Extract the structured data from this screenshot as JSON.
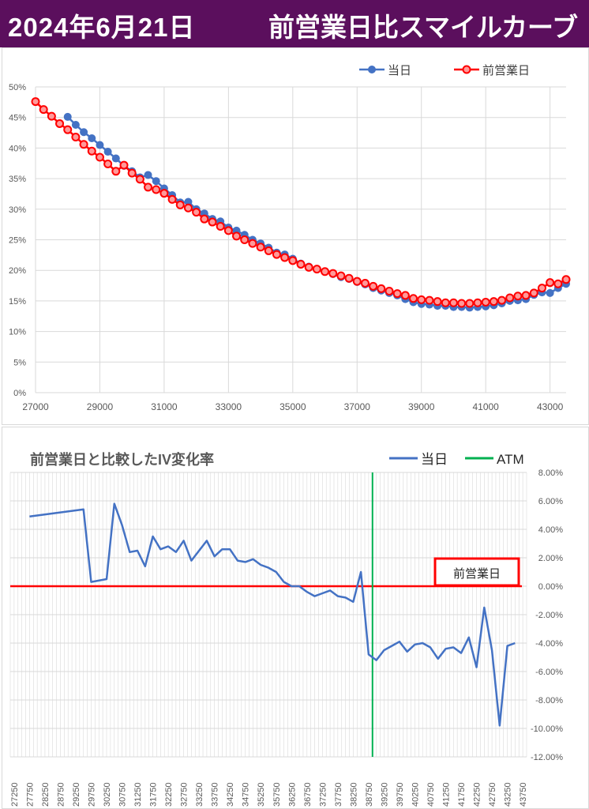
{
  "header": {
    "date": "2024年6月21日",
    "title": "前営業日比スマイルカーブ"
  },
  "colors": {
    "header_bg": "#5b0f5d",
    "today": "#4472c4",
    "prev": "#ff0000",
    "atm": "#00b050",
    "grid": "#d9d9d9"
  },
  "chart_data": [
    {
      "type": "line",
      "title": "",
      "legend": [
        "当日",
        "前営業日"
      ],
      "legend_position": "top-right",
      "xlim": [
        27000,
        43500
      ],
      "ylim": [
        0,
        0.5
      ],
      "x_ticks": [
        "27000",
        "29000",
        "31000",
        "33000",
        "35000",
        "37000",
        "39000",
        "41000",
        "43000"
      ],
      "y_ticks": [
        "0%",
        "5%",
        "10%",
        "15%",
        "20%",
        "25%",
        "30%",
        "35%",
        "40%",
        "45%",
        "50%"
      ],
      "grid": true,
      "series": [
        {
          "name": "当日",
          "color": "#4472c4",
          "points": [
            [
              28000,
              45.1
            ],
            [
              28250,
              43.8
            ],
            [
              28500,
              42.6
            ],
            [
              28750,
              41.6
            ],
            [
              29000,
              40.5
            ],
            [
              29250,
              39.4
            ],
            [
              29500,
              38.3
            ],
            [
              29750,
              37.1
            ],
            [
              30000,
              36.2
            ],
            [
              30250,
              35.2
            ],
            [
              30500,
              35.6
            ],
            [
              30750,
              34.6
            ],
            [
              31000,
              33.4
            ],
            [
              31250,
              32.3
            ],
            [
              31500,
              31.1
            ],
            [
              31750,
              31.2
            ],
            [
              32000,
              30.0
            ],
            [
              32250,
              29.3
            ],
            [
              32500,
              28.4
            ],
            [
              32750,
              28.0
            ],
            [
              33000,
              27.0
            ],
            [
              33250,
              26.5
            ],
            [
              33500,
              25.8
            ],
            [
              33750,
              25.0
            ],
            [
              34000,
              24.4
            ],
            [
              34250,
              23.7
            ],
            [
              34500,
              22.9
            ],
            [
              34750,
              22.6
            ],
            [
              35000,
              21.9
            ],
            [
              35250,
              21.1
            ],
            [
              35500,
              20.6
            ],
            [
              35750,
              20.2
            ],
            [
              36000,
              19.8
            ],
            [
              36250,
              19.4
            ],
            [
              36500,
              18.9
            ],
            [
              36750,
              18.6
            ],
            [
              37000,
              18.1
            ],
            [
              37250,
              17.7
            ],
            [
              37500,
              17.1
            ],
            [
              37750,
              16.7
            ],
            [
              38000,
              16.3
            ],
            [
              38250,
              15.9
            ],
            [
              38500,
              15.3
            ],
            [
              38750,
              14.8
            ],
            [
              39000,
              14.5
            ],
            [
              39250,
              14.4
            ],
            [
              39500,
              14.2
            ],
            [
              39750,
              14.2
            ],
            [
              40000,
              14.0
            ],
            [
              40250,
              14.0
            ],
            [
              40500,
              13.9
            ],
            [
              40750,
              14.0
            ],
            [
              41000,
              14.1
            ],
            [
              41250,
              14.3
            ],
            [
              41500,
              14.6
            ],
            [
              41750,
              15.0
            ],
            [
              42000,
              15.1
            ],
            [
              42250,
              15.3
            ],
            [
              42500,
              16.0
            ],
            [
              42750,
              16.4
            ],
            [
              43000,
              16.3
            ],
            [
              43250,
              17.1
            ],
            [
              43500,
              17.8
            ]
          ]
        },
        {
          "name": "前営業日",
          "color": "#ff0000",
          "points": [
            [
              27000,
              47.6
            ],
            [
              27250,
              46.3
            ],
            [
              27500,
              45.2
            ],
            [
              27750,
              44.0
            ],
            [
              28000,
              43.0
            ],
            [
              28250,
              41.8
            ],
            [
              28500,
              40.6
            ],
            [
              28750,
              39.5
            ],
            [
              29000,
              38.5
            ],
            [
              29250,
              37.4
            ],
            [
              29500,
              36.2
            ],
            [
              29750,
              37.2
            ],
            [
              30000,
              35.9
            ],
            [
              30250,
              34.9
            ],
            [
              30500,
              33.6
            ],
            [
              30750,
              33.2
            ],
            [
              31000,
              32.6
            ],
            [
              31250,
              31.6
            ],
            [
              31500,
              30.7
            ],
            [
              31750,
              30.2
            ],
            [
              32000,
              29.5
            ],
            [
              32250,
              28.4
            ],
            [
              32500,
              27.9
            ],
            [
              32750,
              27.2
            ],
            [
              33000,
              26.5
            ],
            [
              33250,
              25.6
            ],
            [
              33500,
              25.0
            ],
            [
              33750,
              24.4
            ],
            [
              34000,
              23.8
            ],
            [
              34250,
              23.2
            ],
            [
              34500,
              22.6
            ],
            [
              34750,
              22.1
            ],
            [
              35000,
              21.6
            ],
            [
              35250,
              21.0
            ],
            [
              35500,
              20.5
            ],
            [
              35750,
              20.2
            ],
            [
              36000,
              19.8
            ],
            [
              36250,
              19.5
            ],
            [
              36500,
              19.1
            ],
            [
              36750,
              18.7
            ],
            [
              37000,
              18.2
            ],
            [
              37250,
              17.9
            ],
            [
              37500,
              17.4
            ],
            [
              37750,
              17.0
            ],
            [
              38000,
              16.6
            ],
            [
              38250,
              16.2
            ],
            [
              38500,
              15.9
            ],
            [
              38750,
              15.4
            ],
            [
              39000,
              15.2
            ],
            [
              39250,
              15.1
            ],
            [
              39500,
              14.9
            ],
            [
              39750,
              14.7
            ],
            [
              40000,
              14.7
            ],
            [
              40250,
              14.6
            ],
            [
              40500,
              14.6
            ],
            [
              40750,
              14.7
            ],
            [
              41000,
              14.8
            ],
            [
              41250,
              14.9
            ],
            [
              41500,
              15.1
            ],
            [
              41750,
              15.5
            ],
            [
              42000,
              15.8
            ],
            [
              42250,
              15.9
            ],
            [
              42500,
              16.3
            ],
            [
              42750,
              17.1
            ],
            [
              43000,
              18.0
            ],
            [
              43250,
              17.8
            ],
            [
              43500,
              18.5
            ]
          ]
        }
      ]
    },
    {
      "type": "line",
      "title": "前営業日と比較したIV変化率",
      "legend": [
        "当日",
        "ATM"
      ],
      "legend_position": "top-right",
      "ylim": [
        -12,
        8
      ],
      "y_ticks": [
        "8.00%",
        "6.00%",
        "4.00%",
        "2.00%",
        "0.00%",
        "-2.00%",
        "-4.00%",
        "-6.00%",
        "-8.00%",
        "-10.00%",
        "-12.00%"
      ],
      "x_ticks": [
        "27250",
        "27750",
        "28250",
        "28750",
        "29250",
        "29750",
        "30250",
        "30750",
        "31250",
        "31750",
        "32250",
        "32750",
        "33250",
        "33750",
        "34250",
        "34750",
        "35250",
        "35750",
        "36250",
        "36750",
        "37250",
        "37750",
        "38250",
        "38750",
        "39250",
        "39750",
        "40250",
        "40750",
        "41250",
        "41750",
        "42250",
        "42750",
        "43250",
        "43750"
      ],
      "xlim": [
        27125,
        43875
      ],
      "atm_strike": 38875,
      "baseline_label": "前営業日",
      "series": [
        {
          "name": "当日",
          "color": "#4472c4",
          "points": [
            [
              27750,
              4.9
            ],
            [
              29500,
              5.4
            ],
            [
              29750,
              0.3
            ],
            [
              30250,
              0.5
            ],
            [
              30500,
              5.8
            ],
            [
              30750,
              4.3
            ],
            [
              31000,
              2.4
            ],
            [
              31250,
              2.5
            ],
            [
              31500,
              1.4
            ],
            [
              31750,
              3.5
            ],
            [
              32000,
              2.6
            ],
            [
              32250,
              2.8
            ],
            [
              32500,
              2.4
            ],
            [
              32750,
              3.2
            ],
            [
              33000,
              1.8
            ],
            [
              33500,
              3.2
            ],
            [
              33750,
              2.1
            ],
            [
              34000,
              2.6
            ],
            [
              34250,
              2.6
            ],
            [
              34500,
              1.8
            ],
            [
              34750,
              1.7
            ],
            [
              35000,
              1.9
            ],
            [
              35250,
              1.5
            ],
            [
              35500,
              1.3
            ],
            [
              35750,
              1.0
            ],
            [
              36000,
              0.3
            ],
            [
              36250,
              0.0
            ],
            [
              36500,
              0.0
            ],
            [
              36750,
              -0.4
            ],
            [
              37000,
              -0.7
            ],
            [
              37250,
              -0.5
            ],
            [
              37500,
              -0.3
            ],
            [
              37750,
              -0.7
            ],
            [
              38000,
              -0.8
            ],
            [
              38250,
              -1.1
            ],
            [
              38500,
              1.0
            ],
            [
              38750,
              -4.8
            ],
            [
              39000,
              -5.2
            ],
            [
              39250,
              -4.5
            ],
            [
              39500,
              -4.2
            ],
            [
              39750,
              -3.9
            ],
            [
              40000,
              -4.6
            ],
            [
              40250,
              -4.1
            ],
            [
              40500,
              -4.0
            ],
            [
              40750,
              -4.3
            ],
            [
              41000,
              -5.1
            ],
            [
              41250,
              -4.4
            ],
            [
              41500,
              -4.3
            ],
            [
              41750,
              -4.7
            ],
            [
              42000,
              -3.6
            ],
            [
              42250,
              -5.7
            ],
            [
              42500,
              -1.5
            ],
            [
              42750,
              -4.5
            ],
            [
              43000,
              -9.8
            ],
            [
              43250,
              -4.2
            ],
            [
              43500,
              -4.0
            ]
          ]
        },
        {
          "name": "前営業日",
          "color": "#ff0000",
          "points": [
            [
              27125,
              0
            ],
            [
              43500,
              0
            ]
          ]
        }
      ]
    }
  ]
}
